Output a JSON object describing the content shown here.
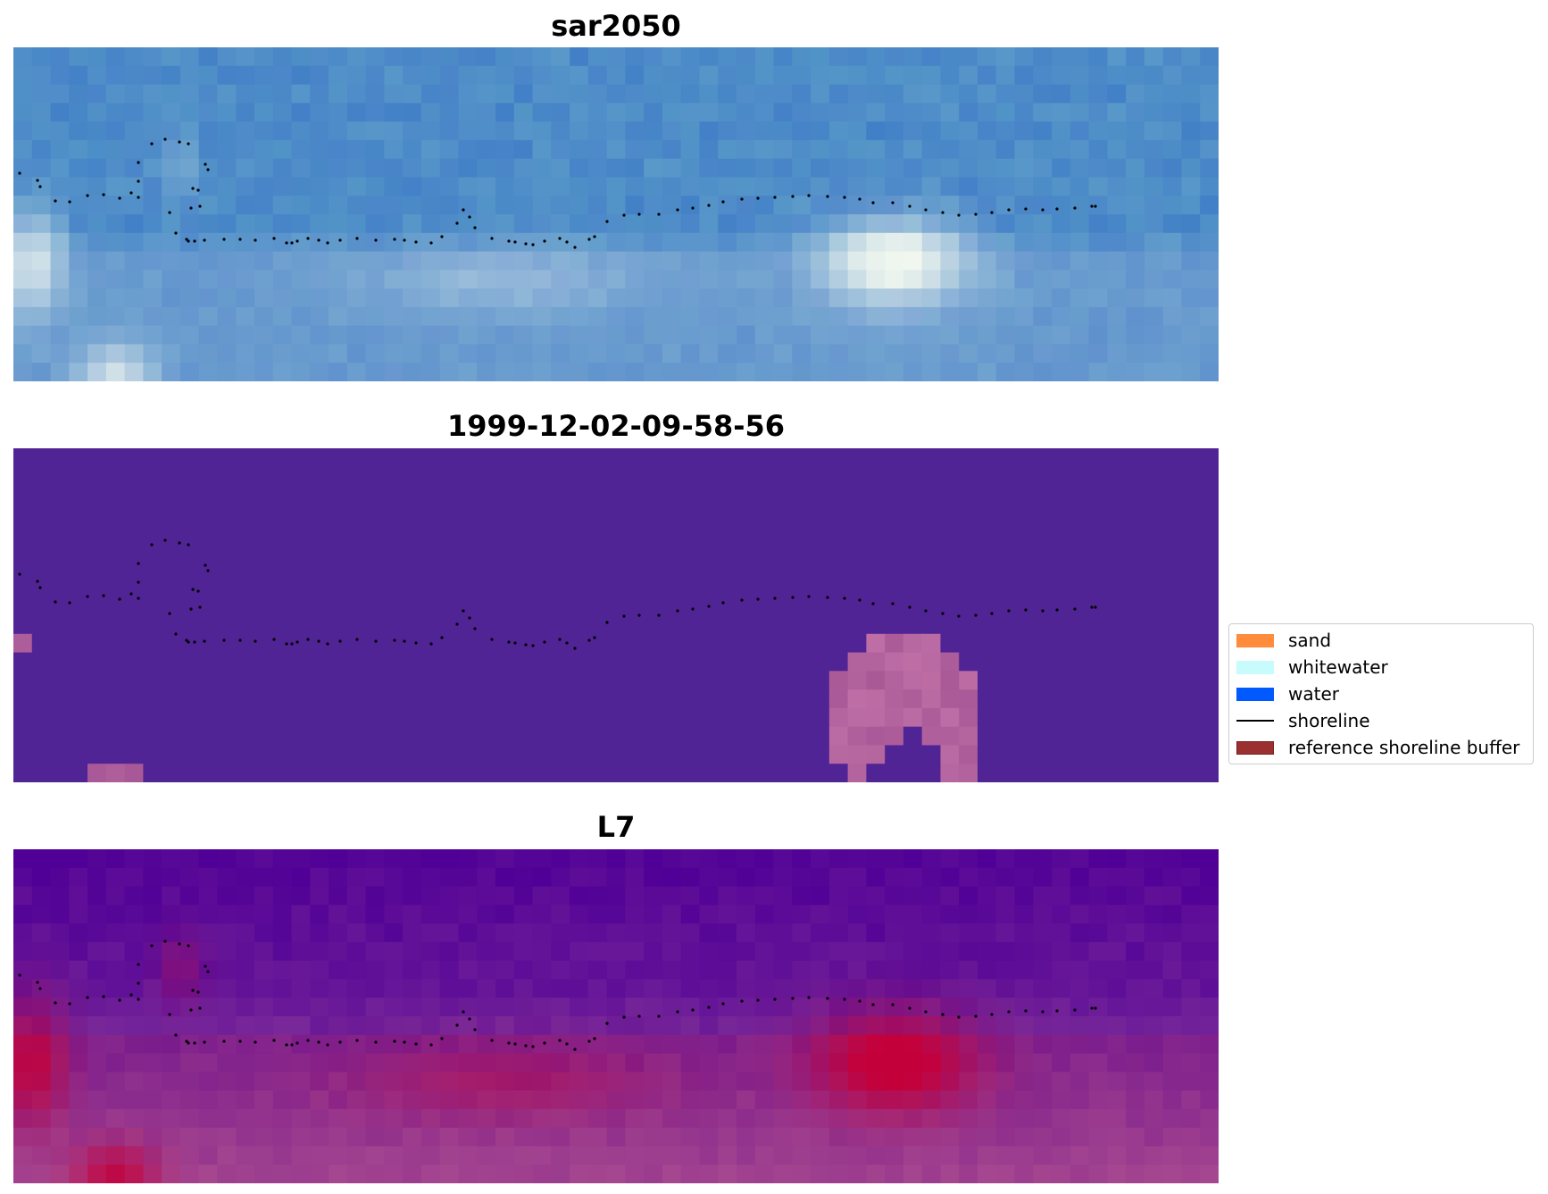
{
  "chart_data": [
    {
      "type": "heatmap",
      "title": "sar2050",
      "image": "rgb",
      "grid_cols": 65,
      "grid_rows": 18,
      "base_color": "#4a86c4",
      "bright_regions": [
        "left-edge whitewater",
        "center-right whitewater patch",
        "bottom-left"
      ],
      "shoreline": "dotted"
    },
    {
      "type": "heatmap",
      "title": "1999-12-02-09-58-56",
      "image": "classification",
      "grid_cols": 65,
      "grid_rows": 18,
      "base_color": "#512496",
      "class_color": "#b86ba8",
      "shoreline": "dotted"
    },
    {
      "type": "heatmap",
      "title": "L7",
      "image": "index",
      "grid_cols": 65,
      "grid_rows": 18,
      "colors": [
        "#4b0096",
        "#a0509c",
        "#c4003a"
      ],
      "shoreline": "dotted"
    }
  ],
  "legend": {
    "placement": "right",
    "items": [
      {
        "label": "sand",
        "color": "#ff8c3c",
        "kind": "patch"
      },
      {
        "label": "whitewater",
        "color": "#c8fcfc",
        "kind": "patch"
      },
      {
        "label": "water",
        "color": "#005aff",
        "kind": "patch"
      },
      {
        "label": "shoreline",
        "color": "#000000",
        "kind": "line"
      },
      {
        "label": "reference shoreline buffer",
        "color": "#9b3030",
        "kind": "patch",
        "edge": "#7a1f1f"
      }
    ]
  },
  "shoreline_points": [
    [
      7,
      141
    ],
    [
      27,
      149
    ],
    [
      30,
      156
    ],
    [
      47,
      172
    ],
    [
      63,
      173
    ],
    [
      83,
      166
    ],
    [
      101,
      165
    ],
    [
      119,
      169
    ],
    [
      132,
      163
    ],
    [
      140,
      129
    ],
    [
      140,
      150
    ],
    [
      140,
      168
    ],
    [
      155,
      108
    ],
    [
      170,
      103
    ],
    [
      186,
      106
    ],
    [
      196,
      108
    ],
    [
      201,
      158
    ],
    [
      199,
      180
    ],
    [
      209,
      178
    ],
    [
      215,
      131
    ],
    [
      218,
      137
    ],
    [
      207,
      160
    ],
    [
      175,
      185
    ],
    [
      182,
      208
    ],
    [
      194,
      215
    ],
    [
      196,
      217
    ],
    [
      203,
      217
    ],
    [
      214,
      216
    ],
    [
      236,
      215
    ],
    [
      254,
      215
    ],
    [
      271,
      216
    ],
    [
      292,
      214
    ],
    [
      306,
      219
    ],
    [
      312,
      219
    ],
    [
      318,
      217
    ],
    [
      330,
      214
    ],
    [
      342,
      216
    ],
    [
      352,
      219
    ],
    [
      366,
      216
    ],
    [
      385,
      214
    ],
    [
      406,
      216
    ],
    [
      427,
      215
    ],
    [
      438,
      216
    ],
    [
      451,
      218
    ],
    [
      468,
      219
    ],
    [
      480,
      212
    ],
    [
      497,
      197
    ],
    [
      504,
      182
    ],
    [
      511,
      190
    ],
    [
      517,
      202
    ],
    [
      536,
      214
    ],
    [
      555,
      217
    ],
    [
      562,
      218
    ],
    [
      574,
      220
    ],
    [
      582,
      221
    ],
    [
      595,
      217
    ],
    [
      612,
      214
    ],
    [
      620,
      218
    ],
    [
      629,
      224
    ],
    [
      645,
      215
    ],
    [
      651,
      212
    ],
    [
      665,
      195
    ],
    [
      684,
      188
    ],
    [
      701,
      187
    ],
    [
      723,
      187
    ],
    [
      744,
      182
    ],
    [
      761,
      180
    ],
    [
      779,
      177
    ],
    [
      795,
      173
    ],
    [
      816,
      170
    ],
    [
      834,
      169
    ],
    [
      853,
      168
    ],
    [
      873,
      167
    ],
    [
      891,
      166
    ],
    [
      912,
      167
    ],
    [
      931,
      168
    ],
    [
      948,
      170
    ],
    [
      963,
      174
    ],
    [
      985,
      174
    ],
    [
      1004,
      178
    ],
    [
      1022,
      182
    ],
    [
      1041,
      185
    ],
    [
      1059,
      188
    ],
    [
      1078,
      187
    ],
    [
      1096,
      185
    ],
    [
      1115,
      182
    ],
    [
      1134,
      181
    ],
    [
      1153,
      182
    ],
    [
      1169,
      181
    ],
    [
      1189,
      180
    ],
    [
      1208,
      178
    ],
    [
      1212,
      178
    ]
  ]
}
